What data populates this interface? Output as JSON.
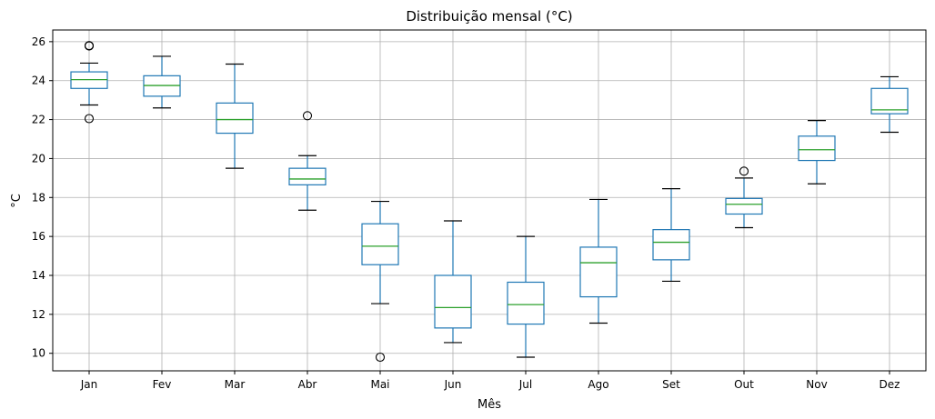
{
  "chart_data": {
    "type": "box",
    "title": "Distribuição mensal (°C)",
    "xlabel": "Mês",
    "ylabel": "°C",
    "ylim": [
      9.1,
      26.6
    ],
    "yticks": [
      10,
      12,
      14,
      16,
      18,
      20,
      22,
      24,
      26
    ],
    "ytick_labels": [
      "10",
      "12",
      "14",
      "16",
      "18",
      "20",
      "22",
      "24",
      "26"
    ],
    "grid": true,
    "colors": {
      "box": "#1f77b4",
      "median": "#2ca02c",
      "whisker": "#1f77b4",
      "cap": "#000000",
      "outlier": "#000000",
      "grid": "#b0b0b0"
    },
    "categories": [
      "Jan",
      "Fev",
      "Mar",
      "Abr",
      "Mai",
      "Jun",
      "Jul",
      "Ago",
      "Set",
      "Out",
      "Nov",
      "Dez"
    ],
    "boxes": [
      {
        "whislo": 22.75,
        "q1": 23.6,
        "med": 24.05,
        "q3": 24.45,
        "whishi": 24.9,
        "fliers": [
          22.05,
          25.8,
          25.78
        ]
      },
      {
        "whislo": 22.6,
        "q1": 23.2,
        "med": 23.75,
        "q3": 24.25,
        "whishi": 25.25,
        "fliers": []
      },
      {
        "whislo": 19.5,
        "q1": 21.3,
        "med": 22.0,
        "q3": 22.85,
        "whishi": 24.85,
        "fliers": []
      },
      {
        "whislo": 17.35,
        "q1": 18.65,
        "med": 18.95,
        "q3": 19.5,
        "whishi": 20.15,
        "fliers": [
          22.2
        ]
      },
      {
        "whislo": 12.55,
        "q1": 14.55,
        "med": 15.5,
        "q3": 16.65,
        "whishi": 17.8,
        "fliers": [
          9.8
        ]
      },
      {
        "whislo": 10.55,
        "q1": 11.3,
        "med": 12.35,
        "q3": 14.0,
        "whishi": 16.8,
        "fliers": []
      },
      {
        "whislo": 9.8,
        "q1": 11.5,
        "med": 12.5,
        "q3": 13.65,
        "whishi": 16.0,
        "fliers": []
      },
      {
        "whislo": 11.55,
        "q1": 12.9,
        "med": 14.65,
        "q3": 15.45,
        "whishi": 17.9,
        "fliers": []
      },
      {
        "whislo": 13.7,
        "q1": 14.8,
        "med": 15.7,
        "q3": 16.35,
        "whishi": 18.45,
        "fliers": []
      },
      {
        "whislo": 16.45,
        "q1": 17.15,
        "med": 17.65,
        "q3": 17.95,
        "whishi": 19.0,
        "fliers": [
          19.35
        ]
      },
      {
        "whislo": 18.7,
        "q1": 19.9,
        "med": 20.45,
        "q3": 21.15,
        "whishi": 21.95,
        "fliers": []
      },
      {
        "whislo": 21.35,
        "q1": 22.3,
        "med": 22.5,
        "q3": 23.6,
        "whishi": 24.2,
        "fliers": []
      }
    ]
  }
}
